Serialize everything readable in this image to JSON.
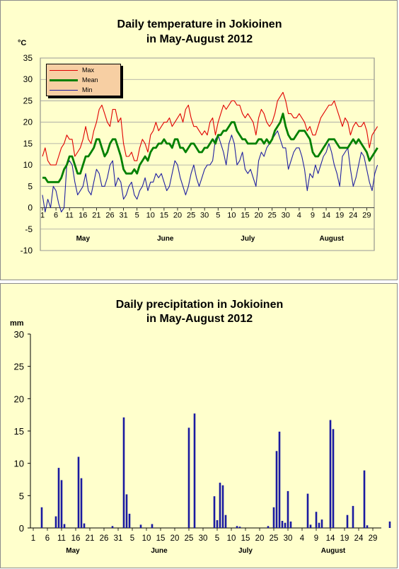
{
  "chart_data": [
    {
      "type": "line",
      "title": [
        "Daily temperature in Jokioinen",
        "in May-August 2012"
      ],
      "unit_label": "°C",
      "ylim": [
        -10,
        35
      ],
      "yticks": [
        -10,
        -5,
        0,
        5,
        10,
        15,
        20,
        25,
        30,
        35
      ],
      "x_tick_labels": [
        "1",
        "6",
        "11",
        "16",
        "21",
        "26",
        "31",
        "5",
        "10",
        "15",
        "20",
        "25",
        "30",
        "5",
        "10",
        "15",
        "20",
        "25",
        "30",
        "4",
        "9",
        "14",
        "19",
        "24",
        "29"
      ],
      "month_labels": [
        "May",
        "June",
        "July",
        "August"
      ],
      "grid": true,
      "legend_position": "top-left",
      "series": [
        {
          "name": "Max",
          "color": "#e00000",
          "values": [
            12,
            14,
            11,
            10,
            10,
            10,
            12,
            14,
            15,
            17,
            16,
            16,
            12,
            13,
            14,
            16,
            19,
            16,
            15,
            18,
            20,
            23,
            24,
            22,
            20,
            19,
            23,
            23,
            20,
            21,
            15,
            12,
            12,
            13,
            11,
            11,
            14,
            16,
            15,
            13,
            17,
            18,
            20,
            18,
            19,
            20,
            20,
            21,
            19,
            20,
            21,
            22,
            20,
            23,
            24,
            21,
            19,
            19,
            18,
            17,
            18,
            17,
            20,
            21,
            17,
            20,
            22,
            24,
            23,
            24,
            25,
            25,
            24,
            24,
            22,
            21,
            22,
            21,
            20,
            17,
            21,
            23,
            22,
            20,
            19,
            20,
            22,
            25,
            26,
            27,
            25,
            22,
            22,
            21,
            21,
            22,
            21,
            20,
            18,
            19,
            17,
            17,
            19,
            21,
            22,
            23,
            24,
            24,
            25,
            23,
            21,
            19,
            21,
            20,
            17,
            19,
            20,
            19,
            19,
            20,
            18,
            14,
            17,
            18,
            19
          ]
        },
        {
          "name": "Mean",
          "color": "#008000",
          "values": [
            7,
            7,
            6,
            6,
            6,
            6,
            6,
            7,
            9,
            10,
            12,
            12,
            10,
            8,
            8,
            10,
            12,
            12,
            13,
            14,
            16,
            16,
            14,
            12,
            13,
            15,
            16,
            16,
            14,
            12,
            9,
            8,
            8,
            8,
            9,
            8,
            10,
            11,
            12,
            11,
            13,
            14,
            14,
            15,
            15,
            16,
            15,
            15,
            14,
            16,
            16,
            14,
            14,
            13,
            14,
            15,
            15,
            14,
            13,
            13,
            14,
            14,
            15,
            16,
            15,
            17,
            17,
            18,
            18,
            19,
            20,
            20,
            18,
            17,
            16,
            16,
            15,
            15,
            15,
            15,
            16,
            16,
            15,
            16,
            15,
            16,
            18,
            19,
            20,
            22,
            19,
            17,
            16,
            16,
            17,
            18,
            18,
            18,
            17,
            16,
            13,
            12,
            12,
            13,
            14,
            15,
            16,
            16,
            16,
            15,
            14,
            14,
            14,
            14,
            15,
            16,
            15,
            16,
            15,
            14,
            13,
            11,
            12,
            13,
            14
          ]
        },
        {
          "name": "Min",
          "color": "#2020a0",
          "values": [
            3,
            -1,
            2,
            0,
            5,
            4,
            1,
            -1,
            0,
            10,
            11,
            10,
            6,
            3,
            4,
            5,
            8,
            4,
            3,
            6,
            9,
            8,
            5,
            5,
            7,
            10,
            11,
            5,
            7,
            6,
            2,
            3,
            5,
            6,
            3,
            2,
            4,
            5,
            7,
            4,
            6,
            6,
            8,
            7,
            8,
            6,
            4,
            5,
            8,
            11,
            10,
            7,
            5,
            3,
            5,
            8,
            10,
            7,
            5,
            7,
            9,
            10,
            10,
            11,
            16,
            17,
            15,
            13,
            10,
            15,
            17,
            15,
            10,
            11,
            13,
            9,
            8,
            9,
            7,
            5,
            11,
            13,
            12,
            14,
            15,
            16,
            17,
            18,
            16,
            14,
            14,
            9,
            11,
            13,
            14,
            14,
            12,
            9,
            4,
            8,
            7,
            10,
            8,
            10,
            12,
            13,
            15,
            13,
            10,
            8,
            5,
            12,
            13,
            14,
            9,
            5,
            7,
            10,
            13,
            12,
            9,
            6,
            4,
            8,
            10
          ]
        }
      ]
    },
    {
      "type": "bar",
      "title": [
        "Daily precipitation in Jokioinen",
        "in May-August 2012"
      ],
      "unit_label": "mm",
      "ylim": [
        0,
        30
      ],
      "yticks": [
        0,
        5,
        10,
        15,
        20,
        25,
        30
      ],
      "x_tick_labels": [
        "1",
        "6",
        "11",
        "16",
        "21",
        "26",
        "31",
        "5",
        "10",
        "15",
        "20",
        "25",
        "30",
        "5",
        "10",
        "15",
        "20",
        "25",
        "30",
        "4",
        "9",
        "14",
        "19",
        "24",
        "29"
      ],
      "month_labels": [
        "May",
        "June",
        "July",
        "August"
      ],
      "grid": false,
      "series": [
        {
          "name": "",
          "color": "#1a1aa0",
          "values": [
            0,
            0,
            0,
            3.2,
            0,
            0,
            0,
            0,
            1.8,
            9.3,
            7.4,
            0.6,
            0,
            0,
            0,
            0,
            11,
            7.7,
            0.7,
            0,
            0,
            0,
            0,
            0,
            0,
            0,
            0,
            0,
            0.3,
            0,
            0,
            0,
            17.1,
            5.2,
            2.2,
            0,
            0,
            0,
            0.5,
            0,
            0,
            0,
            0.6,
            0,
            0,
            0,
            0,
            0,
            0,
            0,
            0,
            0,
            0,
            0,
            0,
            15.5,
            0,
            17.7,
            0,
            0,
            0,
            0,
            0,
            0,
            4.9,
            1.2,
            7,
            6.6,
            2,
            0,
            0,
            0,
            0.3,
            0.2,
            0,
            0,
            0,
            0,
            0,
            0,
            0,
            0,
            0,
            0.3,
            0,
            3.2,
            11.9,
            14.9,
            1.1,
            0.8,
            5.7,
            1,
            0,
            0,
            0,
            0,
            0,
            5.3,
            0.5,
            0,
            2.5,
            0.8,
            1.3,
            0,
            0,
            16.7,
            15.3,
            0,
            0,
            0,
            0,
            2,
            0,
            3.4,
            0,
            0,
            0,
            8.9,
            0.4,
            0,
            0,
            0,
            0,
            0,
            0,
            0,
            1,
            0,
            0,
            0
          ]
        }
      ]
    }
  ]
}
